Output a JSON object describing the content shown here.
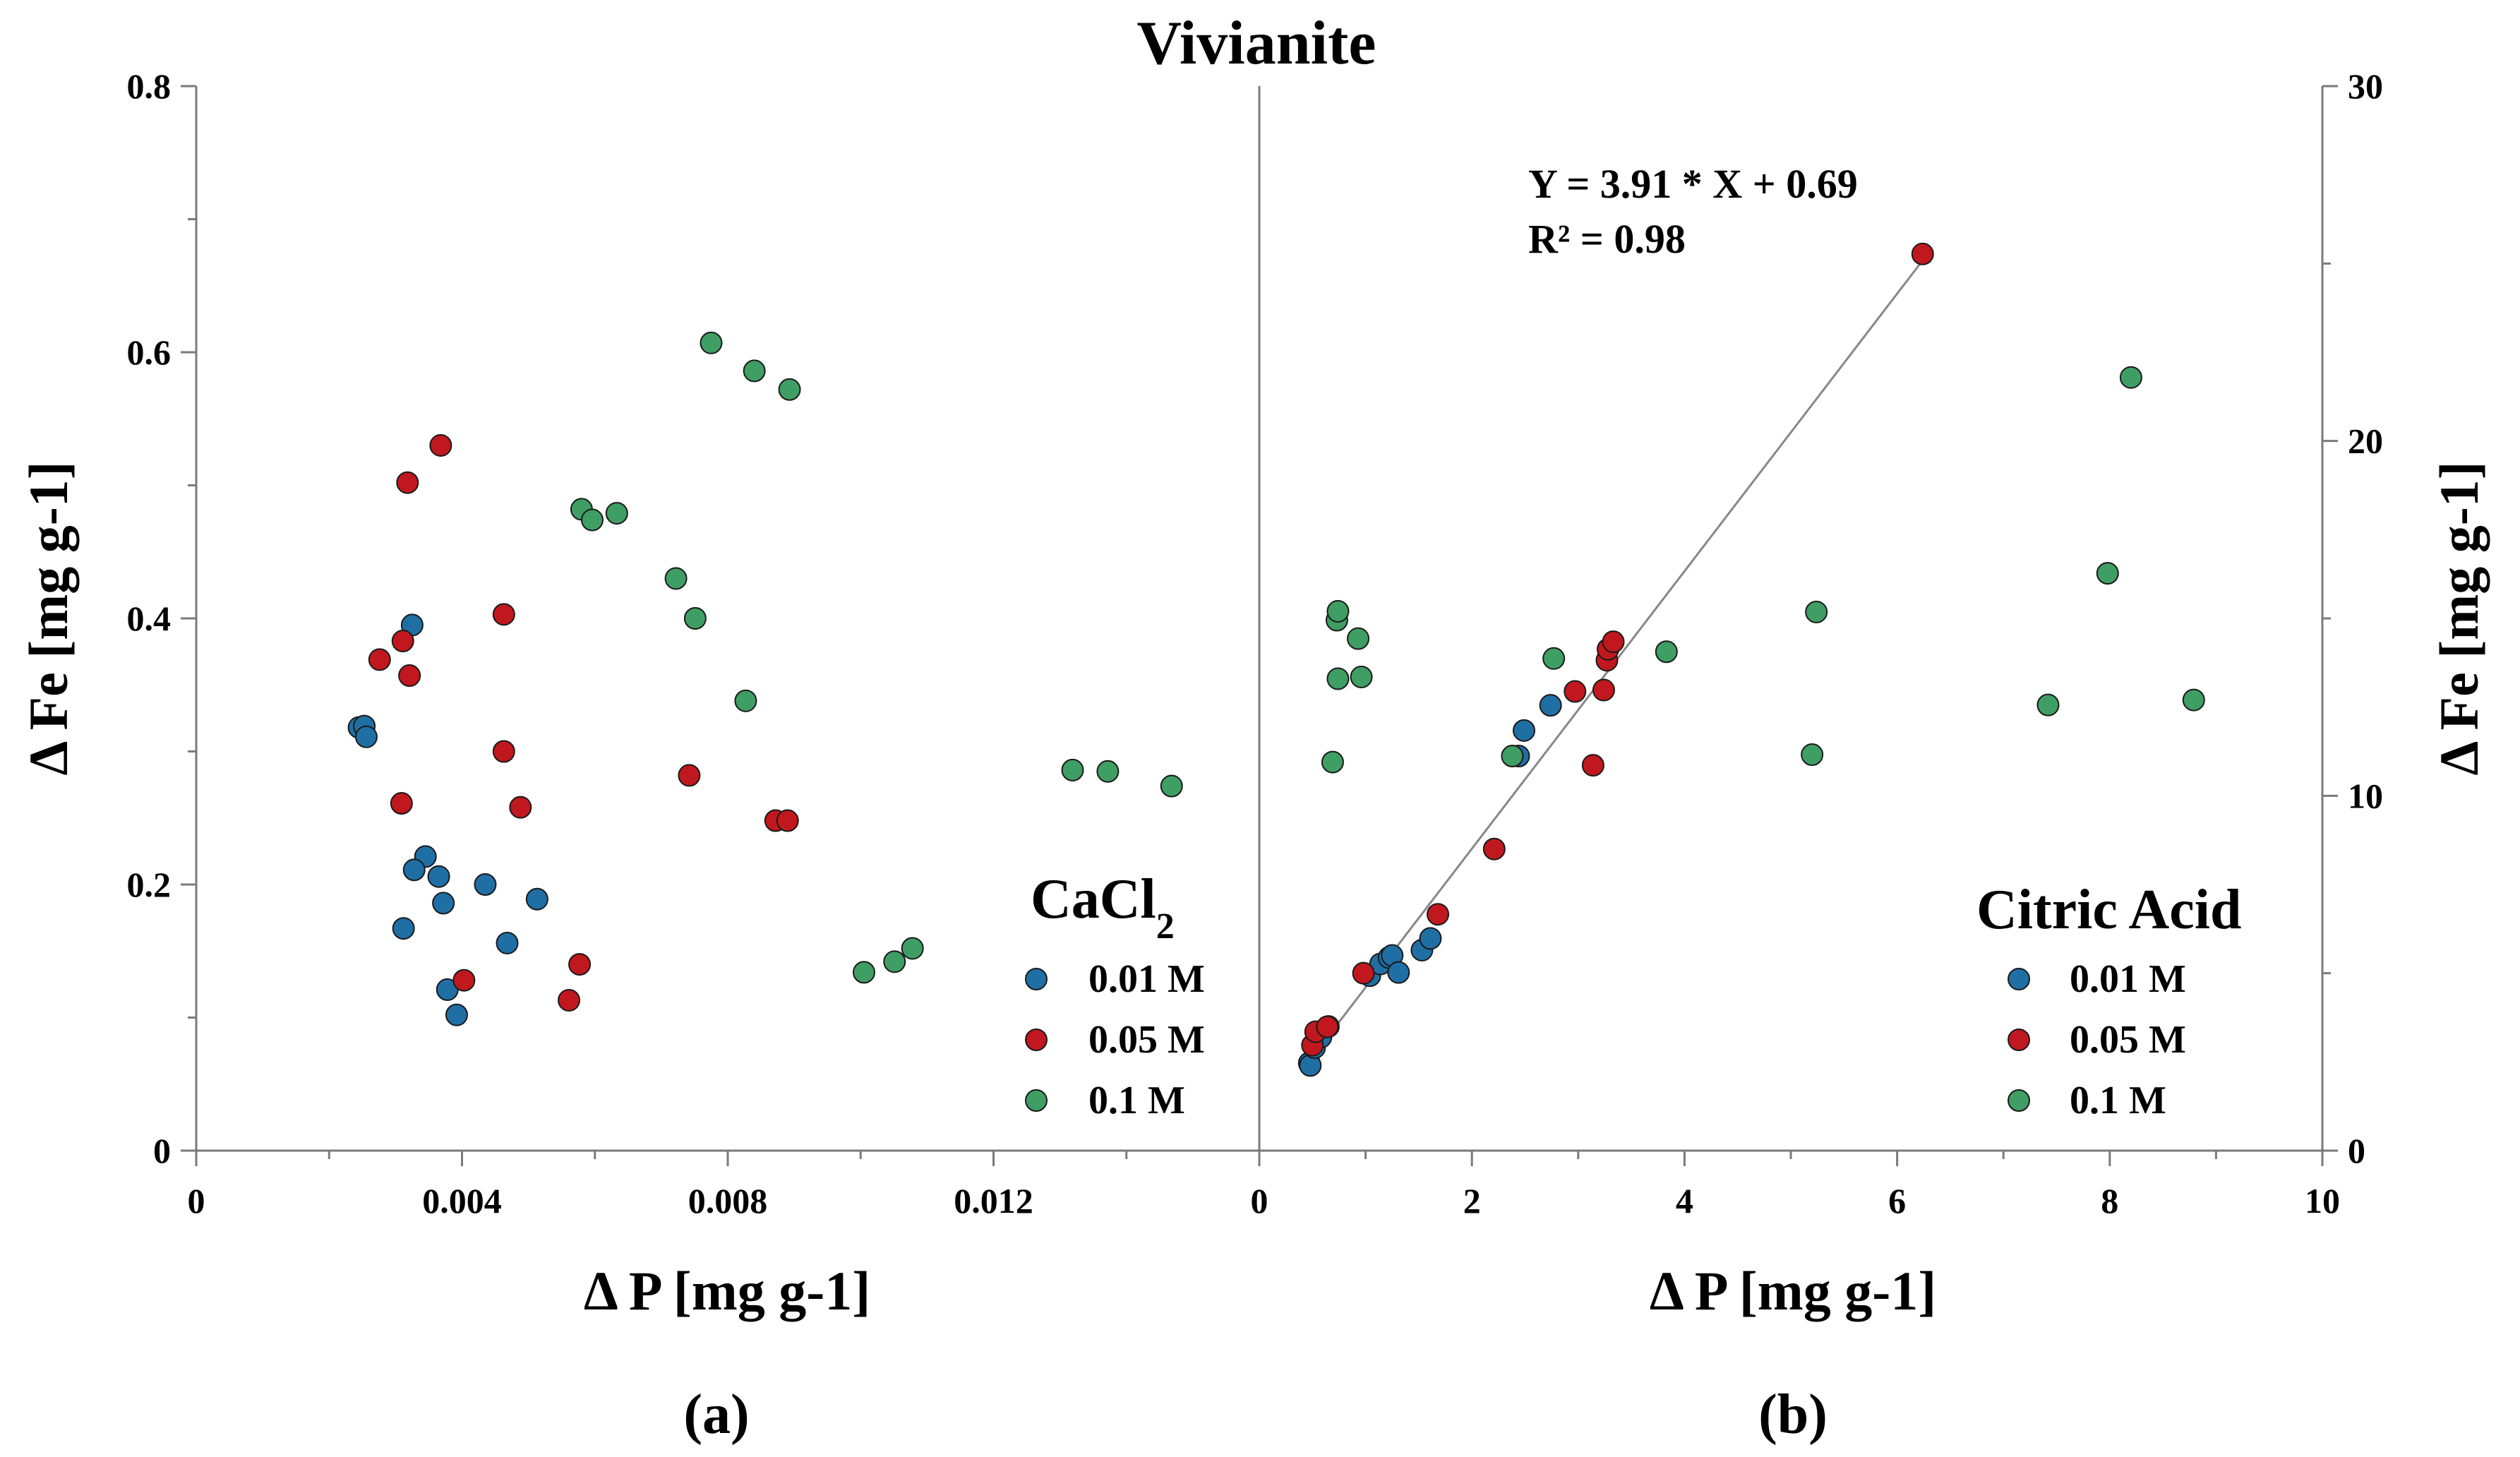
{
  "figure": {
    "title": "Vivianite",
    "panel_labels": [
      "(a)",
      "(b)"
    ]
  },
  "colors": {
    "0.01 M": "#1f6fa5",
    "0.05 M": "#c0181e",
    "0.1 M": "#3f9e63",
    "fit_line": "#888888"
  },
  "chart_data": [
    {
      "type": "scatter",
      "panel": "(a)",
      "xlabel": "Δ P [mg g-1]",
      "ylabel": "Δ Fe [mg g-1]",
      "xlim": [
        0,
        0.016
      ],
      "ylim": [
        0,
        0.8
      ],
      "x_ticks": [
        {
          "value": 0,
          "label": "0"
        },
        {
          "value": 0.004,
          "label": "0.004"
        },
        {
          "value": 0.008,
          "label": "0.008"
        },
        {
          "value": 0.012,
          "label": "0.012"
        }
      ],
      "y_ticks": [
        {
          "value": 0,
          "label": "0"
        },
        {
          "value": 0.2,
          "label": "0.2"
        },
        {
          "value": 0.4,
          "label": "0.4"
        },
        {
          "value": 0.6,
          "label": "0.6"
        },
        {
          "value": 0.8,
          "label": "0.8"
        }
      ],
      "legend": {
        "title_main": "CaCl",
        "title_sub": "2",
        "placement": "lower-right",
        "entries": [
          "0.01 M",
          "0.05 M",
          "0.1 M"
        ]
      },
      "series": [
        {
          "name": "0.01 M",
          "points": [
            [
              0.00245,
              0.318
            ],
            [
              0.00253,
              0.319
            ],
            [
              0.00256,
              0.311
            ],
            [
              0.00325,
              0.395
            ],
            [
              0.00345,
              0.221
            ],
            [
              0.00328,
              0.211
            ],
            [
              0.00365,
              0.206
            ],
            [
              0.00372,
              0.186
            ],
            [
              0.00312,
              0.167
            ],
            [
              0.00378,
              0.121
            ],
            [
              0.00392,
              0.102
            ],
            [
              0.00435,
              0.2
            ],
            [
              0.00468,
              0.156
            ],
            [
              0.00513,
              0.189
            ]
          ]
        },
        {
          "name": "0.05 M",
          "points": [
            [
              0.00368,
              0.53
            ],
            [
              0.00318,
              0.502
            ],
            [
              0.00276,
              0.369
            ],
            [
              0.00311,
              0.383
            ],
            [
              0.00321,
              0.357
            ],
            [
              0.00309,
              0.261
            ],
            [
              0.00403,
              0.128
            ],
            [
              0.00463,
              0.403
            ],
            [
              0.00463,
              0.3
            ],
            [
              0.00488,
              0.258
            ],
            [
              0.00742,
              0.282
            ],
            [
              0.00872,
              0.248
            ],
            [
              0.0089,
              0.248
            ],
            [
              0.00577,
              0.14
            ],
            [
              0.00561,
              0.113
            ]
          ]
        },
        {
          "name": "0.1 M",
          "points": [
            [
              0.00775,
              0.607
            ],
            [
              0.0084,
              0.586
            ],
            [
              0.00893,
              0.572
            ],
            [
              0.0058,
              0.482
            ],
            [
              0.00596,
              0.474
            ],
            [
              0.00633,
              0.479
            ],
            [
              0.00722,
              0.43
            ],
            [
              0.00751,
              0.4
            ],
            [
              0.00827,
              0.338
            ],
            [
              0.01319,
              0.286
            ],
            [
              0.01372,
              0.285
            ],
            [
              0.01468,
              0.274
            ],
            [
              0.01005,
              0.134
            ],
            [
              0.01051,
              0.142
            ],
            [
              0.01078,
              0.152
            ]
          ]
        }
      ]
    },
    {
      "type": "scatter",
      "panel": "(b)",
      "xlabel": "Δ P [mg g-1]",
      "ylabel": "Δ Fe [mg g-1]",
      "xlim": [
        0,
        10
      ],
      "ylim": [
        0,
        30
      ],
      "x_ticks": [
        {
          "value": 0,
          "label": "0"
        },
        {
          "value": 2,
          "label": "2"
        },
        {
          "value": 4,
          "label": "4"
        },
        {
          "value": 6,
          "label": "6"
        },
        {
          "value": 8,
          "label": "8"
        },
        {
          "value": 10,
          "label": "10"
        }
      ],
      "y_ticks": [
        {
          "value": 0,
          "label": "0"
        },
        {
          "value": 10,
          "label": "10"
        },
        {
          "value": 20,
          "label": "20"
        },
        {
          "value": 30,
          "label": "30"
        }
      ],
      "legend": {
        "title_main": "Citric Acid",
        "title_sub": "",
        "placement": "lower-right",
        "entries": [
          "0.01 M",
          "0.05 M",
          "0.1 M"
        ]
      },
      "fit": {
        "slope": 3.91,
        "intercept": 0.69,
        "x_range": [
          0.62,
          6.24
        ],
        "equation_label": "Y = 3.91 * X + 0.69",
        "r2_label": "R² = 0.98"
      },
      "series": [
        {
          "name": "0.01 M",
          "points": [
            [
              0.47,
              2.47
            ],
            [
              0.48,
              2.4
            ],
            [
              0.52,
              2.9
            ],
            [
              0.58,
              3.2
            ],
            [
              0.65,
              3.5
            ],
            [
              1.04,
              4.93
            ],
            [
              1.14,
              5.26
            ],
            [
              1.22,
              5.44
            ],
            [
              1.25,
              5.5
            ],
            [
              1.31,
              5.02
            ],
            [
              1.53,
              5.65
            ],
            [
              1.61,
              5.98
            ],
            [
              2.44,
              11.12
            ],
            [
              2.49,
              11.84
            ],
            [
              2.74,
              12.55
            ]
          ]
        },
        {
          "name": "0.05 M",
          "points": [
            [
              0.5,
              2.97
            ],
            [
              0.53,
              3.35
            ],
            [
              0.64,
              3.49
            ],
            [
              0.98,
              5.0
            ],
            [
              1.68,
              6.66
            ],
            [
              2.21,
              8.5
            ],
            [
              2.97,
              12.94
            ],
            [
              3.14,
              10.86
            ],
            [
              3.24,
              12.98
            ],
            [
              3.27,
              13.82
            ],
            [
              3.28,
              14.13
            ],
            [
              3.33,
              14.34
            ],
            [
              6.24,
              25.27
            ]
          ]
        },
        {
          "name": "0.1 M",
          "points": [
            [
              0.69,
              10.95
            ],
            [
              0.74,
              13.3
            ],
            [
              0.73,
              14.95
            ],
            [
              0.74,
              15.2
            ],
            [
              0.93,
              14.43
            ],
            [
              0.96,
              13.35
            ],
            [
              2.38,
              11.12
            ],
            [
              2.77,
              13.87
            ],
            [
              3.83,
              14.06
            ],
            [
              5.2,
              11.16
            ],
            [
              5.24,
              15.18
            ],
            [
              7.42,
              12.56
            ],
            [
              7.98,
              16.27
            ],
            [
              8.2,
              21.79
            ],
            [
              8.79,
              12.7
            ]
          ]
        }
      ]
    }
  ]
}
